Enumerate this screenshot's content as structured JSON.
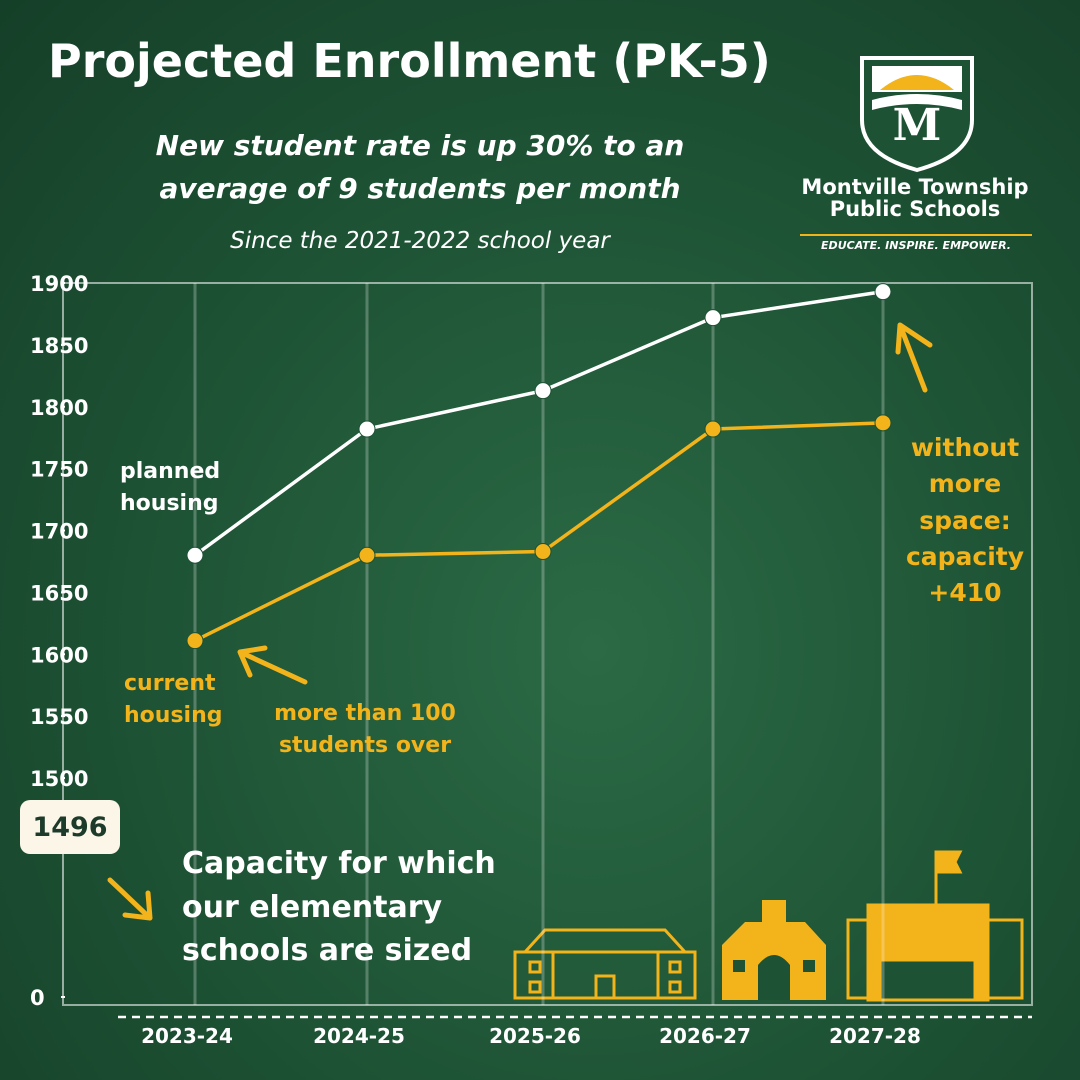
{
  "chart_data": {
    "type": "line",
    "title": "Projected Enrollment (PK-5)",
    "subtitle": "New student rate is up 30% to an average of 9 students per month",
    "note": "Since the 2021-2022 school year",
    "categories": [
      "2023-24",
      "2024-25",
      "2025-26",
      "2026-27",
      "2027-28"
    ],
    "series": [
      {
        "name": "planned housing",
        "color": "#ffffff",
        "values": [
          1680,
          1782,
          1813,
          1872,
          1893
        ]
      },
      {
        "name": "current housing",
        "color": "#f2b31b",
        "values": [
          1611,
          1680,
          1683,
          1782,
          1787
        ]
      }
    ],
    "ylim": [
      1500,
      1900
    ],
    "yticks": [
      1900,
      1850,
      1800,
      1750,
      1700,
      1650,
      1600,
      1550,
      1500,
      0
    ],
    "axis_break": true,
    "grid": true,
    "capacity": {
      "value": 1496,
      "label": "Capacity for which our elementary schools are sized"
    },
    "annotations": [
      "more than 100 students over",
      "without more space: capacity +410"
    ],
    "logo": {
      "name_line1": "Montville Township",
      "name_line2": "Public Schools",
      "tagline": "EDUCATE. INSPIRE. EMPOWER."
    }
  }
}
